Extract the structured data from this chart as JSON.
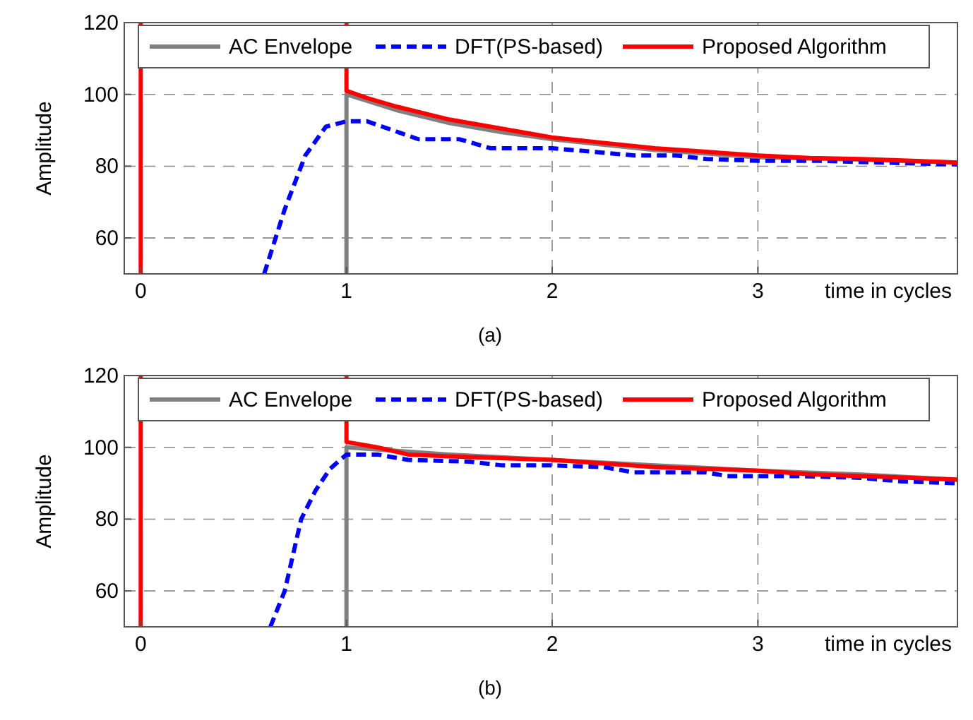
{
  "chart_data": [
    {
      "type": "line",
      "ylabel": "Amplitude",
      "xlabel": "time in cycles",
      "annotations": [
        "(a)"
      ],
      "xlim": [
        -0.08,
        3.97
      ],
      "ylim": [
        50,
        120
      ],
      "xticks": [
        0,
        1,
        2,
        3
      ],
      "yticks": [
        60,
        80,
        100,
        120
      ],
      "grid": true,
      "legend": "top",
      "series": [
        {
          "name": "AC Envelope",
          "color": "#808080",
          "line_style": "solid",
          "x": [
            1,
            1,
            1.25,
            1.5,
            1.75,
            2,
            2.25,
            2.5,
            2.75,
            3,
            3.5,
            3.97
          ],
          "values": [
            50,
            100,
            95.5,
            92,
            89.5,
            87.5,
            86,
            84.5,
            83.5,
            82.5,
            81.8,
            81
          ]
        },
        {
          "name": "DFT(PS-based)",
          "color": "#0000ff",
          "line_style": "dashed",
          "x": [
            0.6,
            0.7,
            0.8,
            0.9,
            1,
            1.1,
            1.2,
            1.35,
            1.55,
            1.7,
            2,
            2.2,
            2.4,
            2.6,
            2.75,
            3,
            3.3,
            3.6,
            3.97
          ],
          "values": [
            50,
            68,
            83,
            91,
            92.5,
            92.5,
            90.5,
            87.5,
            87.5,
            85,
            85,
            84,
            83,
            83,
            82,
            81.5,
            81.5,
            81,
            80.5
          ]
        },
        {
          "name": "Proposed Algorithm",
          "color": "#ff0000",
          "line_style": "solid",
          "x": [
            0,
            0,
            0.5,
            1,
            1,
            1.1,
            1.25,
            1.5,
            1.75,
            2,
            2.25,
            2.5,
            2.75,
            3,
            3.25,
            3.5,
            3.75,
            3.97
          ],
          "values": [
            50,
            120,
            null,
            120,
            101,
            99,
            96.5,
            93,
            90.5,
            88,
            86.5,
            85,
            84,
            83,
            82.3,
            82,
            81.5,
            81
          ]
        }
      ]
    },
    {
      "type": "line",
      "ylabel": "Amplitude",
      "xlabel": "time in cycles",
      "annotations": [
        "(b)"
      ],
      "xlim": [
        -0.08,
        3.97
      ],
      "ylim": [
        50,
        120
      ],
      "xticks": [
        0,
        1,
        2,
        3
      ],
      "yticks": [
        60,
        80,
        100,
        120
      ],
      "grid": true,
      "legend": "top",
      "series": [
        {
          "name": "AC Envelope",
          "color": "#808080",
          "line_style": "solid",
          "x": [
            1,
            1,
            1.25,
            1.5,
            2,
            2.5,
            3,
            3.5,
            3.97
          ],
          "values": [
            50,
            100,
            99,
            98,
            96.5,
            95,
            93.5,
            92.4,
            91
          ]
        },
        {
          "name": "DFT(PS-based)",
          "color": "#0000ff",
          "line_style": "dashed",
          "x": [
            0.63,
            0.7,
            0.78,
            0.85,
            0.92,
            1,
            1.15,
            1.3,
            1.6,
            1.75,
            2,
            2.25,
            2.4,
            2.75,
            2.85,
            3.2,
            3.5,
            3.7,
            3.97
          ],
          "values": [
            50,
            60,
            80,
            88,
            94,
            98,
            98,
            96.5,
            96,
            95,
            95,
            94.5,
            93,
            93,
            92,
            92,
            91.5,
            90.5,
            90
          ]
        },
        {
          "name": "Proposed Algorithm",
          "color": "#ff0000",
          "line_style": "solid",
          "x": [
            0,
            0,
            0.5,
            1,
            1,
            1.15,
            1.3,
            1.5,
            2,
            2.25,
            2.5,
            2.75,
            3,
            3.25,
            3.5,
            3.75,
            3.97
          ],
          "values": [
            50,
            120,
            null,
            120,
            101.5,
            100,
            98,
            97.5,
            96.5,
            95.5,
            94.5,
            94,
            93.5,
            92.5,
            92,
            91.5,
            91
          ]
        }
      ]
    }
  ]
}
